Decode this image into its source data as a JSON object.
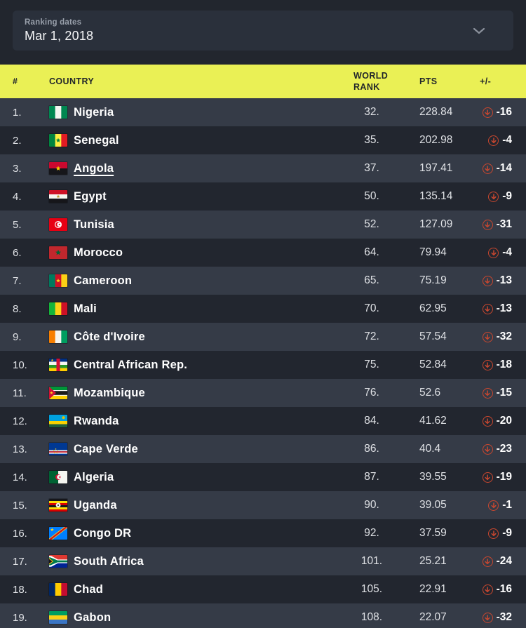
{
  "header": {
    "label": "Ranking dates",
    "value": "Mar 1, 2018"
  },
  "icons": {
    "dropdown": "chevron-down",
    "decrease": "arrow-down-circle"
  },
  "colors": {
    "accent_yellow": "#eaf055",
    "badge_red": "#c9472f",
    "row_odd": "#353b47",
    "row_even": "#22262f",
    "panel": "#2a303b",
    "background": "#22262e"
  },
  "table": {
    "columns": {
      "rank": "#",
      "country": "COUNTRY",
      "world_rank": "WORLD RANK",
      "pts": "PTS",
      "diff": "+/-"
    },
    "rows": [
      {
        "rank": "1.",
        "country": "Nigeria",
        "flag": "ng",
        "world_rank": "32.",
        "pts": "228.84",
        "diff": "-16"
      },
      {
        "rank": "2.",
        "country": "Senegal",
        "flag": "sn",
        "world_rank": "35.",
        "pts": "202.98",
        "diff": "-4"
      },
      {
        "rank": "3.",
        "country": "Angola",
        "flag": "ao",
        "world_rank": "37.",
        "pts": "197.41",
        "diff": "-14",
        "underline": true
      },
      {
        "rank": "4.",
        "country": "Egypt",
        "flag": "eg",
        "world_rank": "50.",
        "pts": "135.14",
        "diff": "-9"
      },
      {
        "rank": "5.",
        "country": "Tunisia",
        "flag": "tn",
        "world_rank": "52.",
        "pts": "127.09",
        "diff": "-31"
      },
      {
        "rank": "6.",
        "country": "Morocco",
        "flag": "ma",
        "world_rank": "64.",
        "pts": "79.94",
        "diff": "-4"
      },
      {
        "rank": "7.",
        "country": "Cameroon",
        "flag": "cm",
        "world_rank": "65.",
        "pts": "75.19",
        "diff": "-13"
      },
      {
        "rank": "8.",
        "country": "Mali",
        "flag": "ml",
        "world_rank": "70.",
        "pts": "62.95",
        "diff": "-13"
      },
      {
        "rank": "9.",
        "country": "Côte d'Ivoire",
        "flag": "ci",
        "world_rank": "72.",
        "pts": "57.54",
        "diff": "-32"
      },
      {
        "rank": "10.",
        "country": "Central African Rep.",
        "flag": "cf",
        "world_rank": "75.",
        "pts": "52.84",
        "diff": "-18"
      },
      {
        "rank": "11.",
        "country": "Mozambique",
        "flag": "mz",
        "world_rank": "76.",
        "pts": "52.6",
        "diff": "-15"
      },
      {
        "rank": "12.",
        "country": "Rwanda",
        "flag": "rw",
        "world_rank": "84.",
        "pts": "41.62",
        "diff": "-20"
      },
      {
        "rank": "13.",
        "country": "Cape Verde",
        "flag": "cv",
        "world_rank": "86.",
        "pts": "40.4",
        "diff": "-23"
      },
      {
        "rank": "14.",
        "country": "Algeria",
        "flag": "dz",
        "world_rank": "87.",
        "pts": "39.55",
        "diff": "-19"
      },
      {
        "rank": "15.",
        "country": "Uganda",
        "flag": "ug",
        "world_rank": "90.",
        "pts": "39.05",
        "diff": "-1"
      },
      {
        "rank": "16.",
        "country": "Congo DR",
        "flag": "cd",
        "world_rank": "92.",
        "pts": "37.59",
        "diff": "-9"
      },
      {
        "rank": "17.",
        "country": "South Africa",
        "flag": "za",
        "world_rank": "101.",
        "pts": "25.21",
        "diff": "-24"
      },
      {
        "rank": "18.",
        "country": "Chad",
        "flag": "td",
        "world_rank": "105.",
        "pts": "22.91",
        "diff": "-16"
      },
      {
        "rank": "19.",
        "country": "Gabon",
        "flag": "ga",
        "world_rank": "108.",
        "pts": "22.07",
        "diff": "-32"
      }
    ]
  }
}
